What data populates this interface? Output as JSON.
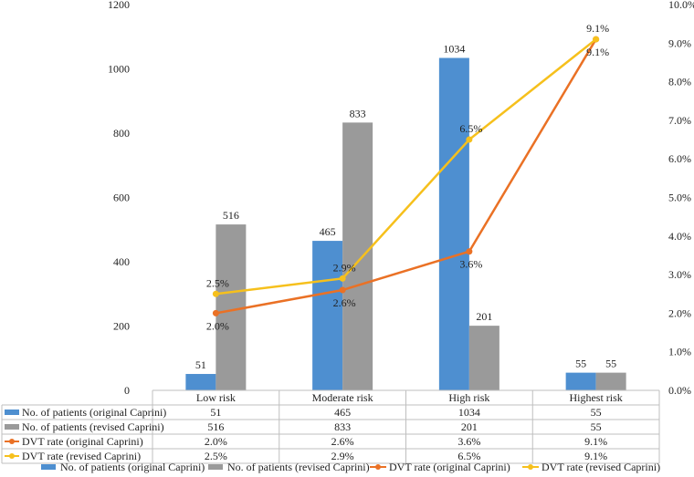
{
  "chart_data": {
    "type": "bar+line",
    "categories": [
      "Low risk",
      "Moderate risk",
      "High risk",
      "Highest risk"
    ],
    "bar_series": [
      {
        "name": "No. of patients (original Caprini)",
        "color": "#4e8fd0",
        "values": [
          51,
          465,
          1034,
          55
        ]
      },
      {
        "name": "No. of patients (revised Caprini)",
        "color": "#9a9a9a",
        "values": [
          516,
          833,
          201,
          55
        ]
      }
    ],
    "line_series": [
      {
        "name": "DVT rate (original Caprini)",
        "color": "#ea7125",
        "values": [
          2.0,
          2.6,
          3.6,
          9.1
        ]
      },
      {
        "name": "DVT rate (revised Caprini)",
        "color": "#f6c01c",
        "values": [
          2.5,
          2.9,
          6.5,
          9.1
        ]
      }
    ],
    "y_left": {
      "min": 0,
      "max": 1200,
      "step": 200
    },
    "y_right": {
      "min": 0,
      "max": 10,
      "step": 1,
      "suffix": "%"
    },
    "table": [
      {
        "label": "No. of patients (original Caprini)",
        "cells": [
          "51",
          "465",
          "1034",
          "55"
        ]
      },
      {
        "label": "No. of patients (revised Caprini)",
        "cells": [
          "516",
          "833",
          "201",
          "55"
        ]
      },
      {
        "label": "DVT rate (original Caprini)",
        "cells": [
          "2.0%",
          "2.6%",
          "3.6%",
          "9.1%"
        ]
      },
      {
        "label": "DVT rate (revised Caprini)",
        "cells": [
          "2.5%",
          "2.9%",
          "6.5%",
          "9.1%"
        ]
      }
    ],
    "legend": [
      "No. of patients (original Caprini)",
      "No. of patients (revised Caprini)",
      "DVT rate (original Caprini)",
      "DVT rate (revised Caprini)"
    ]
  }
}
